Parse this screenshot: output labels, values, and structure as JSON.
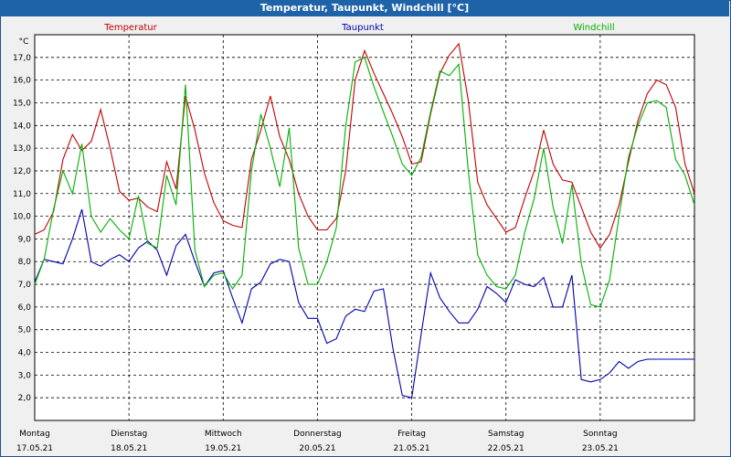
{
  "window": {
    "title": "Temperatur, Taupunkt, Windchill [°C]"
  },
  "colors": {
    "titlebar": "#1e63a8",
    "temperatur": "#c00000",
    "taupunkt": "#0000b0",
    "windchill": "#00b000"
  },
  "chart_data": {
    "type": "line",
    "title": "Temperatur, Taupunkt, Windchill [°C]",
    "ylabel": "°C",
    "ylim": [
      1.0,
      18.0
    ],
    "xlim": [
      0,
      7
    ],
    "yticks": [
      "2,0",
      "3,0",
      "4,0",
      "5,0",
      "6,0",
      "7,0",
      "8,0",
      "9,0",
      "10,0",
      "11,0",
      "12,0",
      "13,0",
      "14,0",
      "15,0",
      "16,0",
      "17,0"
    ],
    "day_labels": [
      {
        "day": "Montag",
        "date": "17.05.21"
      },
      {
        "day": "Dienstag",
        "date": "18.05.21"
      },
      {
        "day": "Mittwoch",
        "date": "19.05.21"
      },
      {
        "day": "Donnerstag",
        "date": "20.05.21"
      },
      {
        "day": "Freitag",
        "date": "21.05.21"
      },
      {
        "day": "Samstag",
        "date": "22.05.21"
      },
      {
        "day": "Sonntag",
        "date": "23.05.21"
      }
    ],
    "series": [
      {
        "name": "Temperatur",
        "color": "#c00000",
        "x": [
          0,
          0.1,
          0.2,
          0.3,
          0.4,
          0.5,
          0.6,
          0.7,
          0.8,
          0.9,
          1.0,
          1.1,
          1.2,
          1.3,
          1.4,
          1.5,
          1.6,
          1.7,
          1.8,
          1.9,
          2.0,
          2.1,
          2.2,
          2.3,
          2.4,
          2.5,
          2.6,
          2.7,
          2.8,
          2.9,
          3.0,
          3.1,
          3.2,
          3.3,
          3.4,
          3.5,
          3.6,
          3.7,
          3.8,
          3.9,
          4.0,
          4.1,
          4.2,
          4.3,
          4.4,
          4.5,
          4.6,
          4.7,
          4.8,
          4.9,
          5.0,
          5.1,
          5.2,
          5.3,
          5.4,
          5.5,
          5.6,
          5.7,
          5.8,
          5.9,
          6.0,
          6.1,
          6.2,
          6.3,
          6.4,
          6.5,
          6.6,
          6.7,
          6.8,
          6.9,
          7.0
        ],
        "y": [
          9.2,
          9.4,
          10.2,
          12.5,
          13.6,
          12.9,
          13.3,
          14.7,
          13.0,
          11.1,
          10.7,
          10.8,
          10.4,
          10.2,
          12.4,
          11.2,
          15.3,
          13.8,
          11.9,
          10.6,
          9.8,
          9.6,
          9.5,
          12.5,
          13.8,
          15.3,
          13.5,
          12.5,
          11.0,
          10.0,
          9.4,
          9.4,
          9.9,
          12.0,
          16.0,
          17.3,
          16.3,
          15.4,
          14.5,
          13.5,
          12.3,
          12.4,
          14.5,
          16.3,
          17.1,
          17.6,
          15.1,
          11.5,
          10.5,
          9.9,
          9.3,
          9.5,
          10.8,
          12.0,
          13.8,
          12.3,
          11.6,
          11.5,
          10.4,
          9.3,
          8.6,
          9.2,
          10.5,
          12.4,
          14.2,
          15.4,
          16.0,
          15.8,
          14.8,
          12.3,
          11.0
        ]
      },
      {
        "name": "Taupunkt",
        "color": "#0000b0",
        "x": [
          0,
          0.1,
          0.2,
          0.3,
          0.4,
          0.5,
          0.6,
          0.7,
          0.8,
          0.9,
          1.0,
          1.1,
          1.2,
          1.3,
          1.4,
          1.5,
          1.6,
          1.7,
          1.8,
          1.9,
          2.0,
          2.1,
          2.2,
          2.3,
          2.4,
          2.5,
          2.6,
          2.7,
          2.8,
          2.9,
          3.0,
          3.1,
          3.2,
          3.3,
          3.4,
          3.5,
          3.6,
          3.7,
          3.8,
          3.9,
          4.0,
          4.1,
          4.2,
          4.3,
          4.4,
          4.5,
          4.6,
          4.7,
          4.8,
          4.9,
          5.0,
          5.1,
          5.2,
          5.3,
          5.4,
          5.5,
          5.6,
          5.7,
          5.8,
          5.9,
          6.0,
          6.1,
          6.2,
          6.3,
          6.4,
          6.5,
          6.6,
          6.7,
          6.8,
          6.9,
          7.0
        ],
        "y": [
          7.1,
          8.1,
          8.0,
          7.9,
          9.0,
          10.3,
          8.0,
          7.8,
          8.1,
          8.3,
          8.0,
          8.6,
          8.9,
          8.5,
          7.4,
          8.7,
          9.2,
          8.0,
          6.9,
          7.5,
          7.6,
          6.4,
          5.3,
          6.8,
          7.1,
          7.9,
          8.1,
          8.0,
          6.2,
          5.5,
          5.5,
          4.4,
          4.6,
          5.6,
          5.9,
          5.8,
          6.7,
          6.8,
          4.2,
          2.1,
          2.0,
          4.8,
          7.5,
          6.4,
          5.8,
          5.3,
          5.3,
          5.9,
          6.9,
          6.6,
          6.2,
          7.2,
          7.0,
          6.9,
          7.3,
          6.0,
          6.0,
          7.4,
          2.8,
          2.7,
          2.8,
          3.1,
          3.6,
          3.3,
          3.6,
          3.7,
          3.7,
          3.7,
          3.7,
          3.7,
          3.7
        ]
      },
      {
        "name": "Windchill",
        "color": "#00b000",
        "x": [
          0,
          0.1,
          0.2,
          0.3,
          0.4,
          0.5,
          0.6,
          0.7,
          0.8,
          0.9,
          1.0,
          1.1,
          1.2,
          1.3,
          1.4,
          1.5,
          1.6,
          1.7,
          1.8,
          1.9,
          2.0,
          2.1,
          2.2,
          2.3,
          2.4,
          2.5,
          2.6,
          2.7,
          2.8,
          2.9,
          3.0,
          3.1,
          3.2,
          3.3,
          3.4,
          3.5,
          3.6,
          3.7,
          3.8,
          3.9,
          4.0,
          4.1,
          4.2,
          4.3,
          4.4,
          4.5,
          4.6,
          4.7,
          4.8,
          4.9,
          5.0,
          5.1,
          5.2,
          5.3,
          5.4,
          5.5,
          5.6,
          5.7,
          5.8,
          5.9,
          6.0,
          6.1,
          6.2,
          6.3,
          6.4,
          6.5,
          6.6,
          6.7,
          6.8,
          6.9,
          7.0
        ],
        "y": [
          7.0,
          8.1,
          10.3,
          12.0,
          11.0,
          13.2,
          10.0,
          9.3,
          9.9,
          9.4,
          9.0,
          10.9,
          8.8,
          8.6,
          11.8,
          10.5,
          15.8,
          8.5,
          6.9,
          7.4,
          7.5,
          6.8,
          7.4,
          12.0,
          14.5,
          13.0,
          11.3,
          13.9,
          8.6,
          7.0,
          7.0,
          8.0,
          9.5,
          14.0,
          16.8,
          17.0,
          15.7,
          14.6,
          13.5,
          12.3,
          11.8,
          12.6,
          14.6,
          16.4,
          16.2,
          16.7,
          12.0,
          8.3,
          7.4,
          6.9,
          6.8,
          7.4,
          9.3,
          10.8,
          13.0,
          10.4,
          8.8,
          11.4,
          7.9,
          6.1,
          6.0,
          7.2,
          10.0,
          12.6,
          14.0,
          15.0,
          15.1,
          14.8,
          12.5,
          11.8,
          10.5
        ]
      }
    ]
  }
}
